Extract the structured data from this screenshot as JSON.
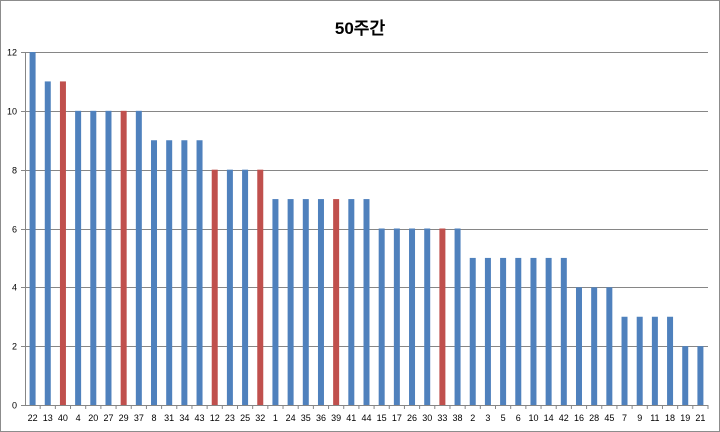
{
  "chart_data": {
    "type": "bar",
    "title": "50주간",
    "xlabel": "",
    "ylabel": "",
    "ylim": [
      0,
      12
    ],
    "yticks": [
      0,
      2,
      4,
      6,
      8,
      10,
      12
    ],
    "grid": true,
    "legend": "none",
    "categories": [
      "22",
      "13",
      "40",
      "4",
      "20",
      "27",
      "29",
      "37",
      "8",
      "31",
      "34",
      "43",
      "12",
      "23",
      "25",
      "32",
      "1",
      "24",
      "35",
      "36",
      "39",
      "41",
      "44",
      "15",
      "17",
      "26",
      "30",
      "33",
      "38",
      "2",
      "3",
      "5",
      "6",
      "10",
      "14",
      "42",
      "16",
      "28",
      "45",
      "7",
      "9",
      "11",
      "18",
      "19",
      "21"
    ],
    "values": [
      12,
      11,
      11,
      10,
      10,
      10,
      10,
      10,
      9,
      9,
      9,
      9,
      8,
      8,
      8,
      8,
      7,
      7,
      7,
      7,
      7,
      7,
      7,
      6,
      6,
      6,
      6,
      6,
      6,
      5,
      5,
      5,
      5,
      5,
      5,
      5,
      4,
      4,
      4,
      3,
      3,
      3,
      3,
      2,
      2
    ],
    "highlighted": [
      "40",
      "29",
      "12",
      "32",
      "39",
      "33"
    ],
    "colors": {
      "bar": "#4f81bd",
      "highlight": "#c0504d",
      "grid": "#868686",
      "axis": "#868686"
    }
  }
}
